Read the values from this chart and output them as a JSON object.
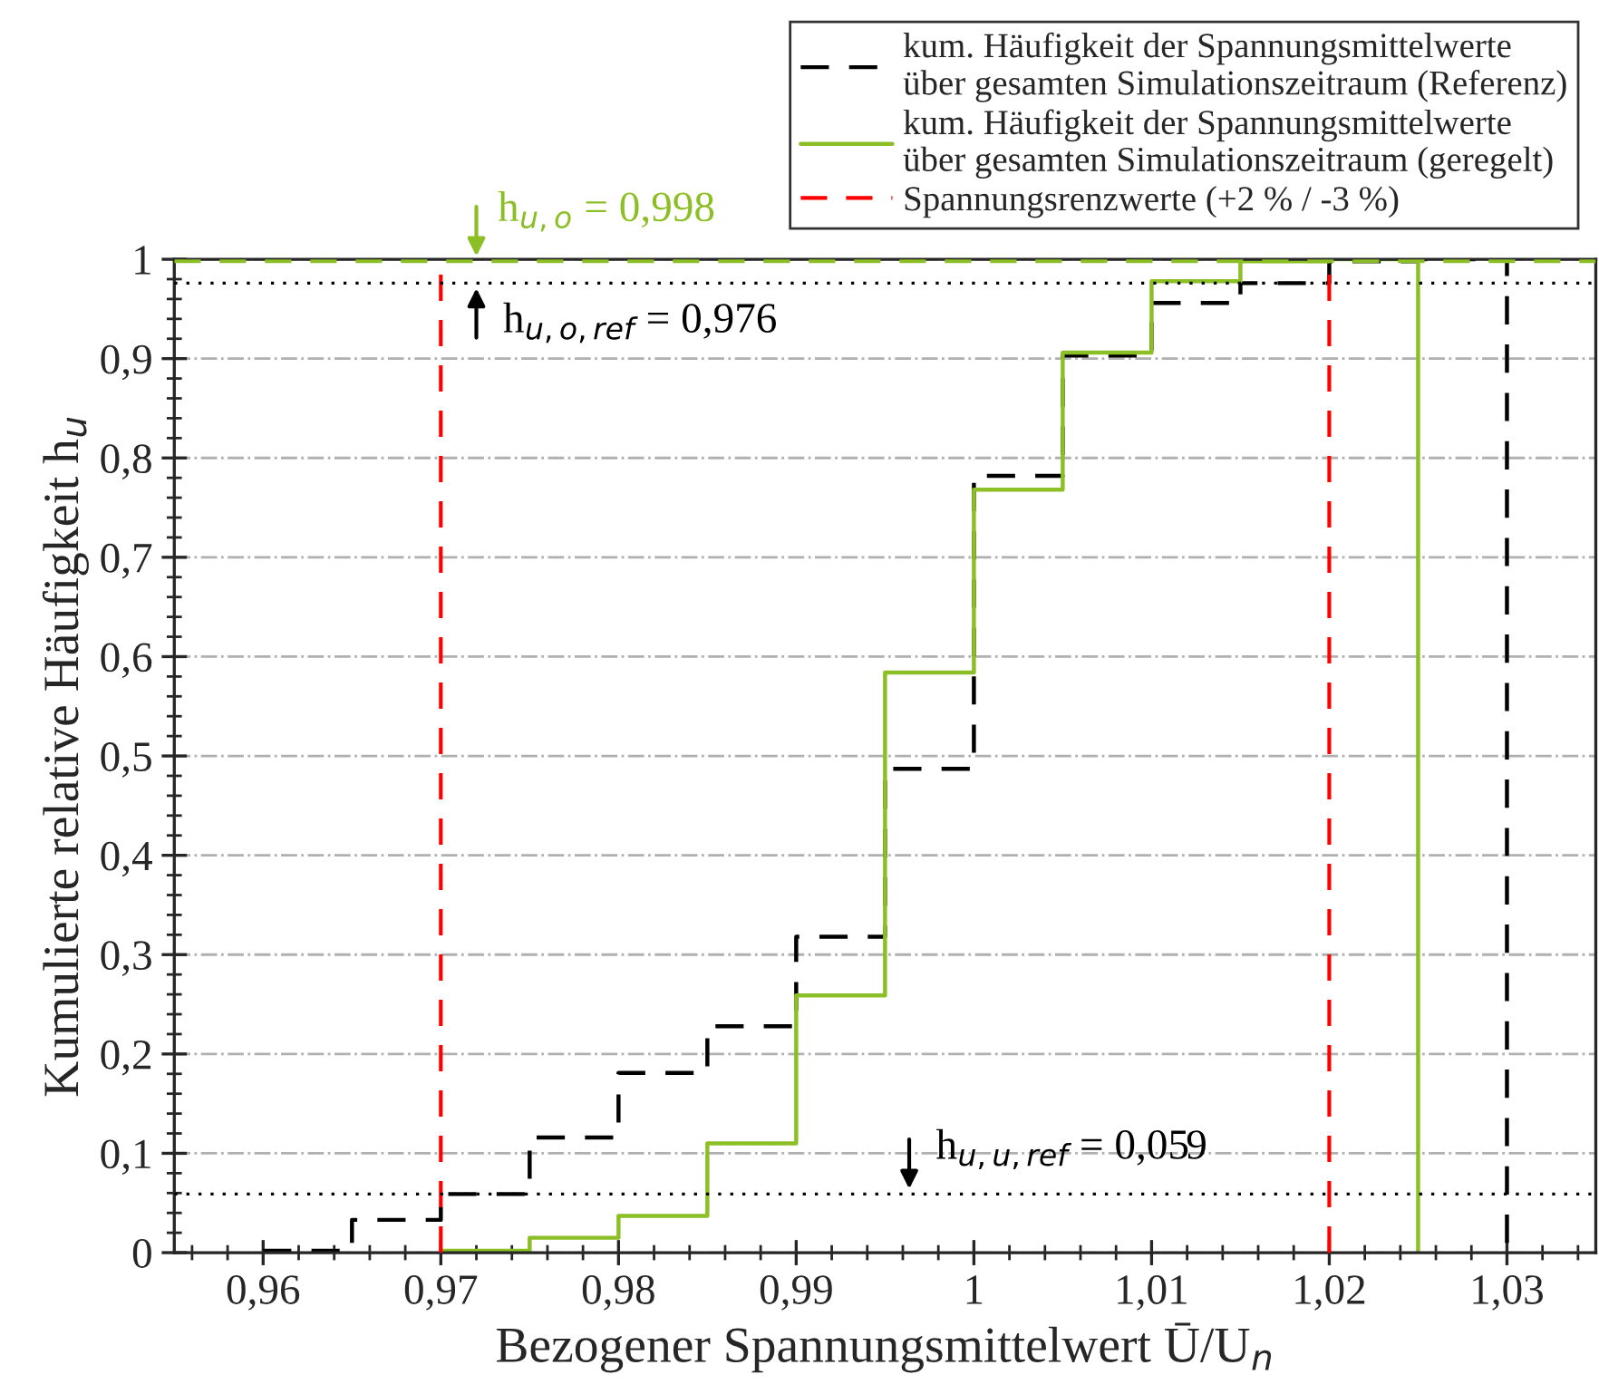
{
  "chart_data": {
    "type": "step",
    "xlabel": "Bezogener Spannungsmittelwert Ū/U$_{n}$",
    "ylabel": "Kumulierte relative Häufigkeit h$_{u}$",
    "series": [
      {
        "name": "kum. Häufigkeit der Spannungsmittelwerte\nüber gesamten Simulationszeitraum (Referenz)",
        "color": "#000000",
        "line_style": "dashed",
        "x": [
          0.96,
          0.965,
          0.97,
          0.975,
          0.98,
          0.985,
          0.99,
          0.995,
          1.0,
          1.005,
          1.01,
          1.015,
          1.02,
          1.025,
          1.03
        ],
        "values": [
          0.002,
          0.033,
          0.059,
          0.116,
          0.181,
          0.228,
          0.318,
          0.487,
          0.782,
          0.903,
          0.956,
          0.976,
          0.998,
          1.0,
          0
        ]
      },
      {
        "name": "kum. Häufigkeit der Spannungsmittelwerte\nüber gesamten Simulationszeitraum (geregelt)",
        "color": "#8cbf26",
        "line_style": "solid",
        "x": [
          0.97,
          0.975,
          0.98,
          0.985,
          0.99,
          0.995,
          1.0,
          1.005,
          1.01,
          1.015,
          1.02,
          1.025
        ],
        "values": [
          0.002,
          0.015,
          0.037,
          0.11,
          0.259,
          0.584,
          0.768,
          0.906,
          0.978,
          0.998,
          1.0,
          0
        ]
      }
    ],
    "ref_lines": [
      {
        "axis": "x",
        "value": 0.97,
        "label": "Spannungsrenzwerte (+2 % / -3 %)",
        "color": "#ff0000",
        "line_style": "dashed"
      },
      {
        "axis": "x",
        "value": 1.02,
        "color": "#ff0000",
        "line_style": "dashed"
      },
      {
        "axis": "y",
        "value": 0.998,
        "color": "#8cbf26",
        "line_style": "dashed"
      },
      {
        "axis": "y",
        "value": 0.976,
        "color": "#000000",
        "line_style": "dotted"
      },
      {
        "axis": "y",
        "value": 0.059,
        "color": "#000000",
        "line_style": "dotted"
      }
    ],
    "annotations": [
      {
        "text": "h$_{u,o}$ = 0,998",
        "y": 0.998
      },
      {
        "text": "h$_{u,o,ref}$ = 0,976",
        "y": 0.976
      },
      {
        "text": "h$_{u,u,ref}$ = 0,059",
        "y": 0.059
      }
    ],
    "xlim": [
      0.955,
      1.035
    ],
    "xticks": [
      {
        "value": 0.96,
        "label": "0,96"
      },
      {
        "value": 0.97,
        "label": "0,97"
      },
      {
        "value": 0.98,
        "label": "0,98"
      },
      {
        "value": 0.99,
        "label": "0,99"
      },
      1,
      {
        "value": 1.01,
        "label": "1,01"
      },
      {
        "value": 1.02,
        "label": "1,02"
      },
      {
        "value": 1.03,
        "label": "1,03"
      }
    ],
    "ylim": [
      0,
      1
    ],
    "yticks": [
      0,
      {
        "value": 0.1,
        "label": "0,1"
      },
      {
        "value": 0.2,
        "label": "0,2"
      },
      {
        "value": 0.3,
        "label": "0,3"
      },
      {
        "value": 0.4,
        "label": "0,4"
      },
      {
        "value": 0.5,
        "label": "0,5"
      },
      {
        "value": 0.6,
        "label": "0,6"
      },
      {
        "value": 0.7,
        "label": "0,7"
      },
      {
        "value": 0.8,
        "label": "0,8"
      },
      {
        "value": 0.9,
        "label": "0,9"
      },
      1
    ],
    "grid": "y",
    "legend": "top right"
  }
}
